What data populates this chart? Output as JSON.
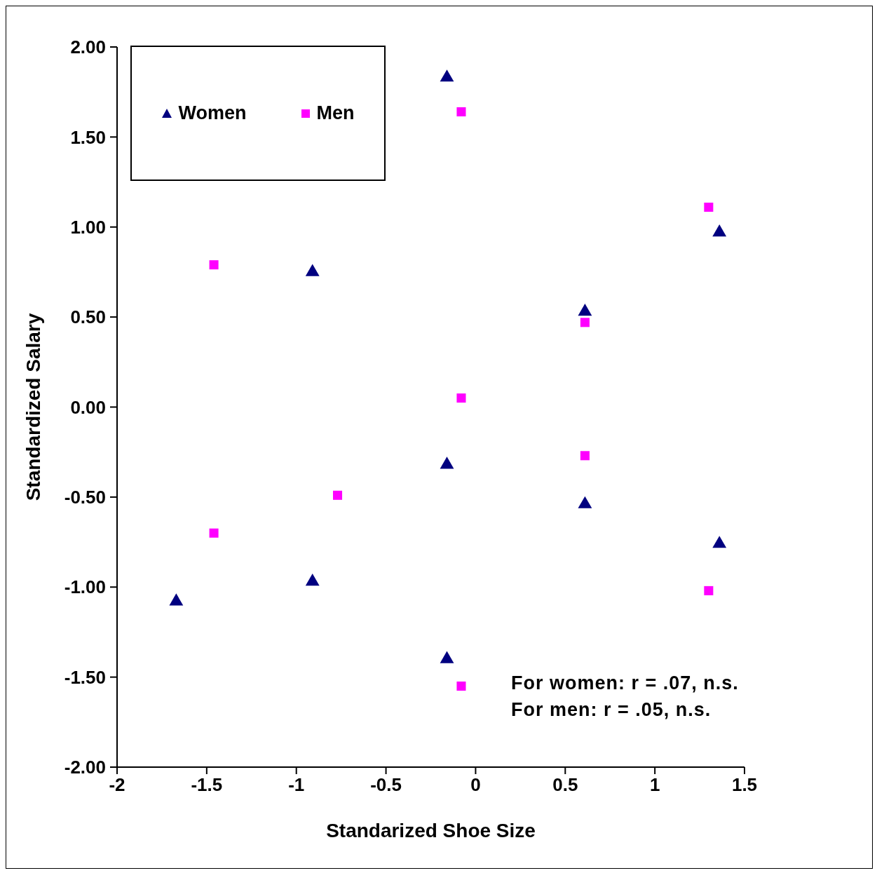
{
  "chart_data": {
    "type": "scatter",
    "xlabel": "Standarized Shoe Size",
    "ylabel": "Standardized Salary",
    "xlim": [
      -2,
      1.5
    ],
    "xticks": [
      -2,
      -1.5,
      -1,
      -0.5,
      0,
      0.5,
      1,
      1.5
    ],
    "ylim": [
      -2,
      2
    ],
    "yticks": [
      {
        "value": -2,
        "label": "-2.00"
      },
      {
        "value": -1.5,
        "label": "-1.50"
      },
      {
        "value": -1,
        "label": "-1.00"
      },
      {
        "value": -0.5,
        "label": "-0.50"
      },
      {
        "value": 0,
        "label": "0.00"
      },
      {
        "value": 0.5,
        "label": "0.50"
      },
      {
        "value": 1,
        "label": "1.00"
      },
      {
        "value": 1.5,
        "label": "1.50"
      },
      {
        "value": 2,
        "label": "2.00"
      }
    ],
    "grid": false,
    "legend": "top left",
    "annotations": [
      "For women: r = .07, n.s.",
      "For men: r = .05, n.s."
    ],
    "series": [
      {
        "name": "Women",
        "color": "#000080",
        "marker": "triangle",
        "x": [
          -1.67,
          -0.91,
          -0.91,
          -0.16,
          -0.16,
          -0.16,
          0.61,
          0.61,
          1.36,
          1.36
        ],
        "values": [
          -1.08,
          0.75,
          -0.97,
          1.83,
          -0.32,
          -1.4,
          0.53,
          -0.54,
          0.97,
          -0.76
        ]
      },
      {
        "name": "Men",
        "color": "#ff00ff",
        "marker": "square",
        "x": [
          -1.46,
          -1.46,
          -0.77,
          -0.08,
          -0.08,
          -0.08,
          0.61,
          0.61,
          1.3,
          1.3
        ],
        "values": [
          0.79,
          -0.7,
          -0.49,
          1.64,
          0.05,
          -1.55,
          0.47,
          -0.27,
          1.11,
          -1.02
        ]
      }
    ]
  }
}
